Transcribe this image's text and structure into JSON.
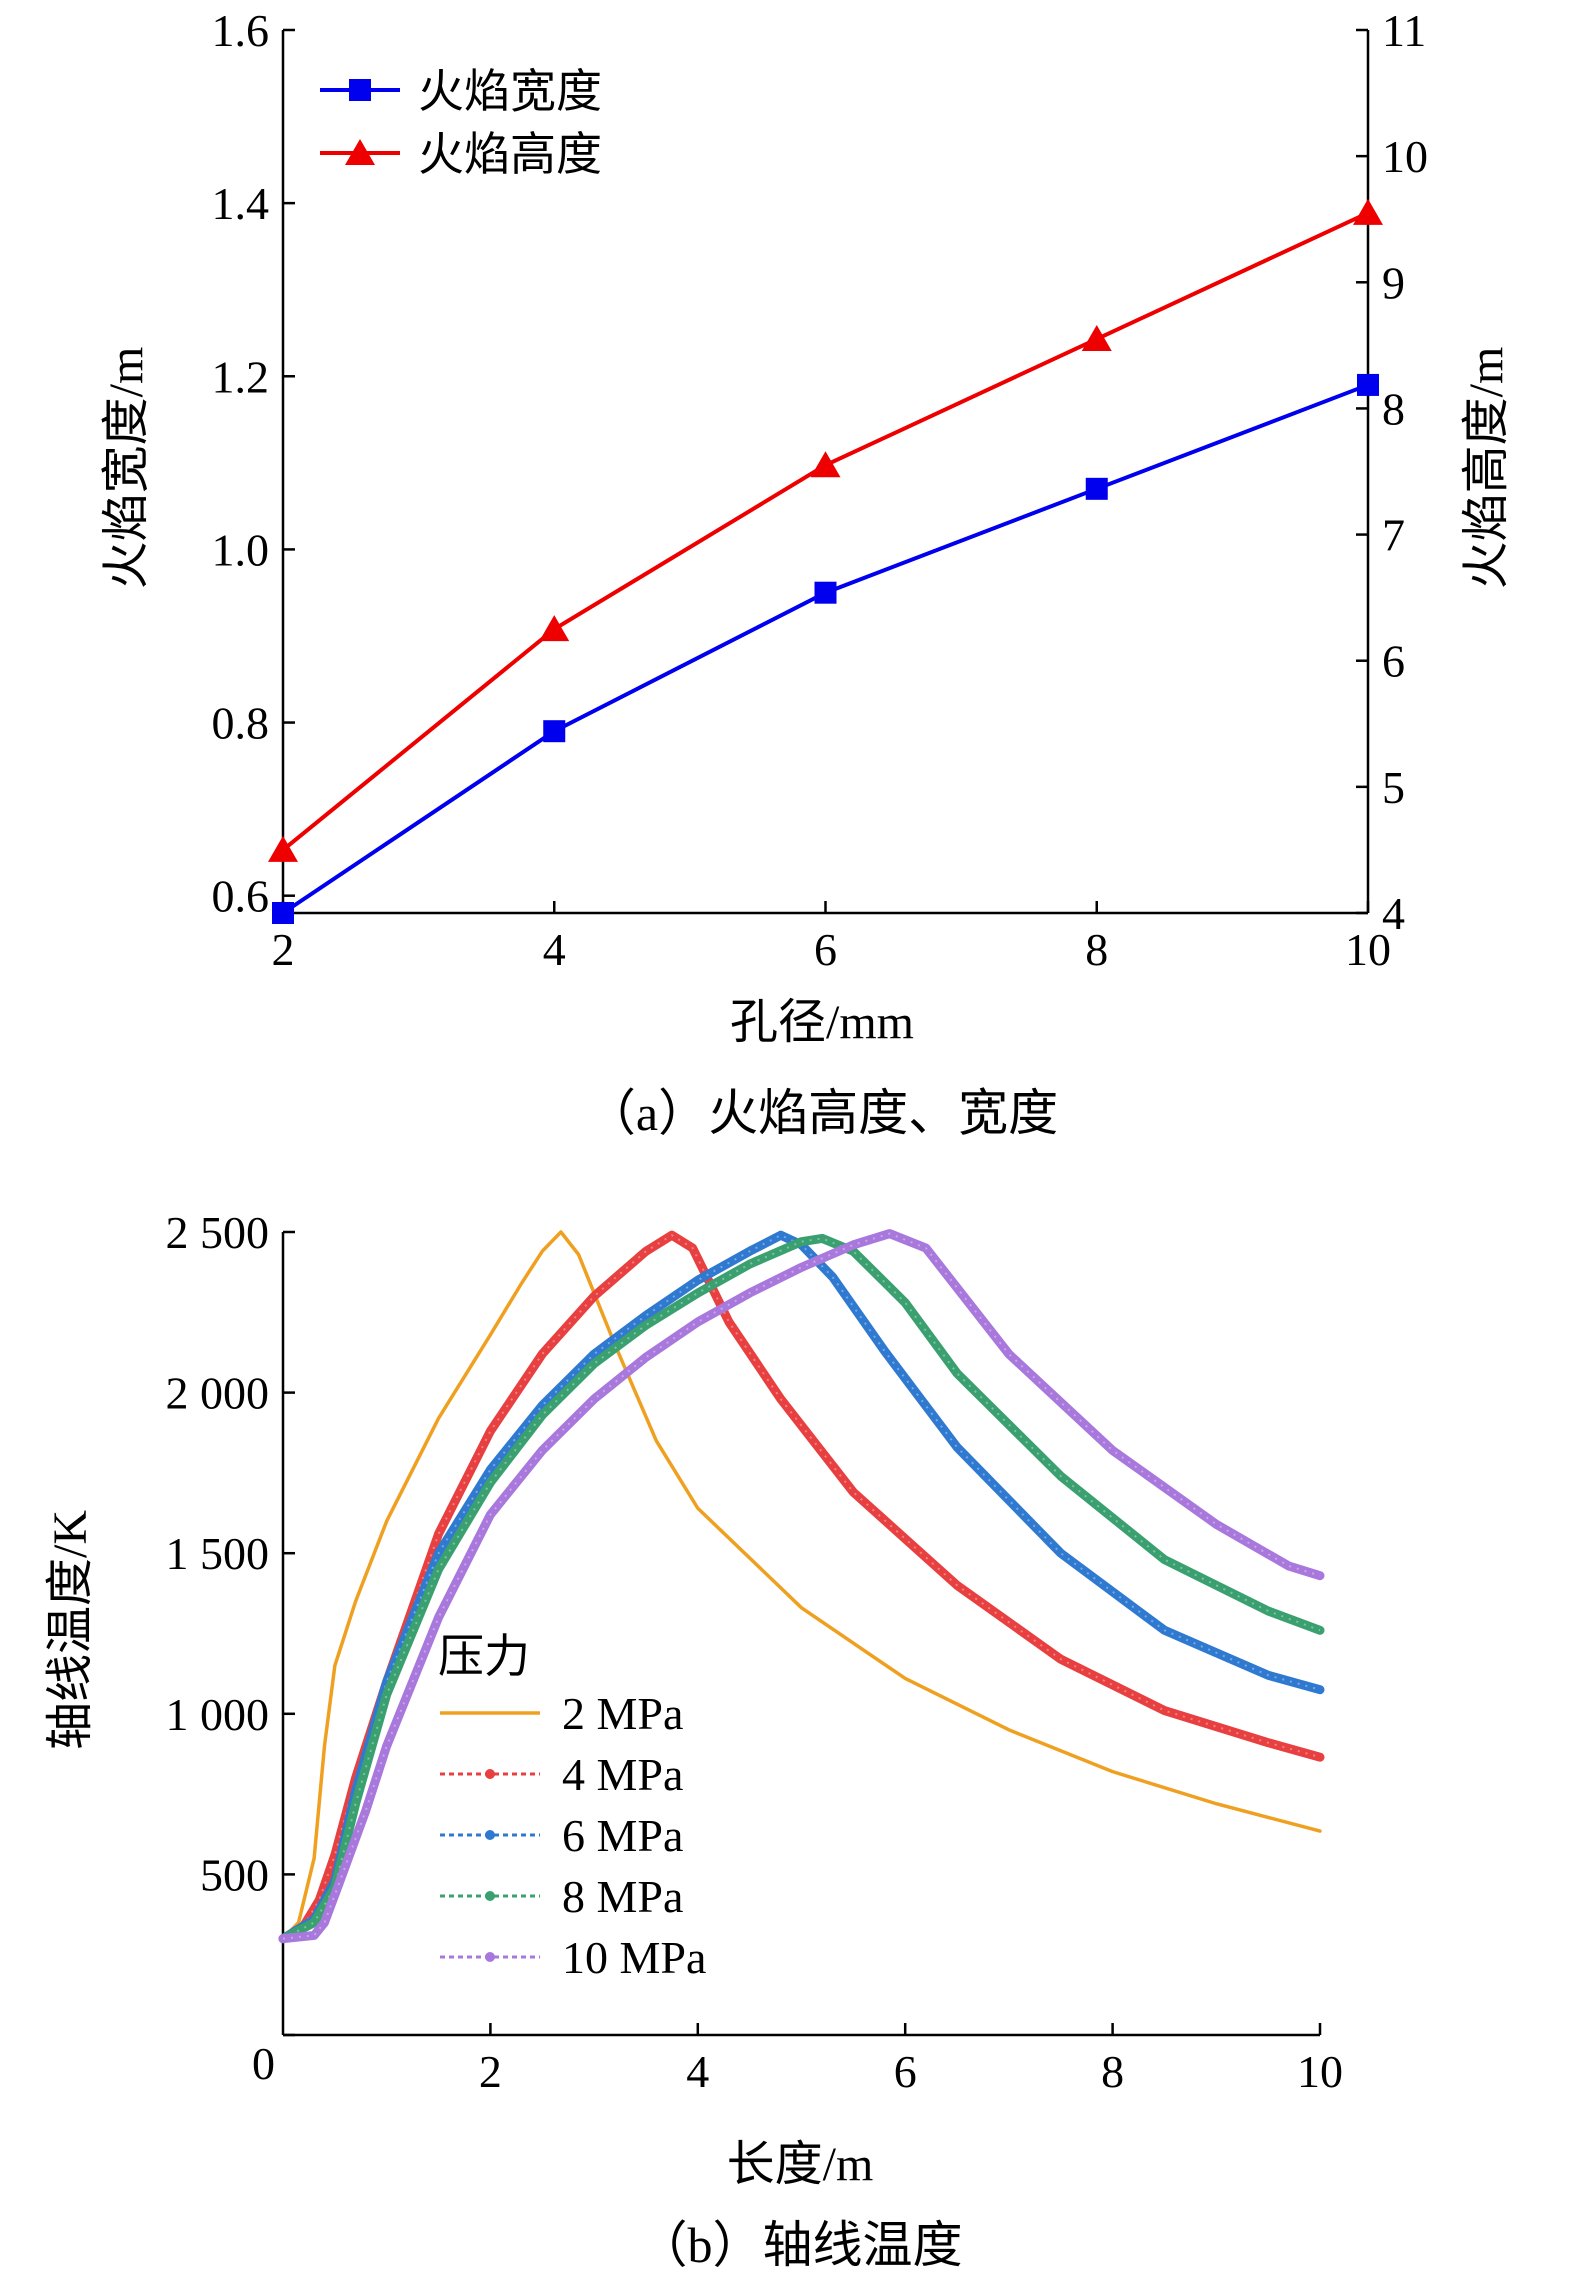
{
  "chart_data": [
    {
      "type": "line",
      "caption": "（a）火焰高度、宽度",
      "xlabel": "孔径/mm",
      "ylabel_left": "火焰宽度/m",
      "ylabel_right": "火焰高度/m",
      "xlim": [
        2,
        10
      ],
      "ylim_left": [
        0.58,
        1.6
      ],
      "ylim_right": [
        4,
        11
      ],
      "xticks": [
        "2",
        "4",
        "6",
        "8",
        "10"
      ],
      "yticks_left": [
        "0.6",
        "0.8",
        "1.0",
        "1.2",
        "1.4",
        "1.6"
      ],
      "yticks_right": [
        "4",
        "5",
        "6",
        "7",
        "8",
        "9",
        "10",
        "11"
      ],
      "x": [
        2,
        4,
        6,
        8,
        10
      ],
      "series": [
        {
          "name": "火焰宽度",
          "axis": "left",
          "color": "#0000ee",
          "marker": "square",
          "values": [
            0.58,
            0.79,
            0.95,
            1.07,
            1.19
          ]
        },
        {
          "name": "火焰高度",
          "axis": "right",
          "color": "#ee0000",
          "marker": "triangle",
          "values": [
            4.5,
            6.25,
            7.55,
            8.55,
            9.55
          ]
        }
      ],
      "legend": "top-left"
    },
    {
      "type": "line",
      "caption": "（b）轴线温度",
      "xlabel": "长度/m",
      "ylabel": "轴线温度/K",
      "xlim": [
        0,
        10
      ],
      "ylim": [
        0,
        2500
      ],
      "xticks": [
        "2",
        "4",
        "6",
        "8",
        "10"
      ],
      "yticks": [
        "0",
        "500",
        "1 000",
        "1 500",
        "2 000",
        "2 500"
      ],
      "legend_title": "压力",
      "legend": "center-left",
      "series": [
        {
          "name": "2 MPa",
          "color": "#f0a020",
          "style": "solid",
          "x": [
            0,
            0.15,
            0.3,
            0.4,
            0.5,
            0.7,
            1.0,
            1.5,
            2.0,
            2.3,
            2.5,
            2.68,
            2.85,
            3.2,
            3.6,
            4.0,
            5.0,
            6.0,
            7.0,
            8.0,
            9.0,
            10.0
          ],
          "y": [
            300,
            350,
            550,
            900,
            1150,
            1350,
            1600,
            1920,
            2180,
            2340,
            2440,
            2500,
            2430,
            2150,
            1850,
            1640,
            1330,
            1110,
            950,
            820,
            720,
            635
          ]
        },
        {
          "name": "4 MPa",
          "color": "#e84040",
          "style": "dotted",
          "x": [
            0,
            0.2,
            0.35,
            0.5,
            0.7,
            1.0,
            1.5,
            2.0,
            2.5,
            3.0,
            3.5,
            3.75,
            3.95,
            4.3,
            4.8,
            5.5,
            6.5,
            7.5,
            8.5,
            9.5,
            10.0
          ],
          "y": [
            300,
            340,
            420,
            560,
            800,
            1100,
            1560,
            1880,
            2120,
            2300,
            2440,
            2490,
            2450,
            2220,
            1980,
            1690,
            1400,
            1170,
            1010,
            910,
            865
          ]
        },
        {
          "name": "6 MPa",
          "color": "#2f7ad0",
          "style": "dotted",
          "x": [
            0,
            0.3,
            0.5,
            0.7,
            1.0,
            1.5,
            2.0,
            2.5,
            3.0,
            3.5,
            4.0,
            4.5,
            4.8,
            5.0,
            5.3,
            5.8,
            6.5,
            7.5,
            8.5,
            9.5,
            10.0
          ],
          "y": [
            300,
            360,
            480,
            760,
            1100,
            1500,
            1760,
            1960,
            2120,
            2240,
            2350,
            2440,
            2490,
            2460,
            2360,
            2130,
            1830,
            1500,
            1260,
            1120,
            1075
          ]
        },
        {
          "name": "8 MPa",
          "color": "#3aa070",
          "style": "dotted",
          "x": [
            0,
            0.3,
            0.5,
            0.7,
            1.0,
            1.5,
            2.0,
            2.5,
            3.0,
            3.5,
            4.0,
            4.5,
            5.0,
            5.2,
            5.5,
            6.0,
            6.5,
            7.5,
            8.5,
            9.5,
            10.0
          ],
          "y": [
            300,
            350,
            460,
            720,
            1060,
            1450,
            1720,
            1930,
            2090,
            2210,
            2310,
            2400,
            2470,
            2480,
            2440,
            2280,
            2060,
            1740,
            1480,
            1320,
            1260
          ]
        },
        {
          "name": "10 MPa",
          "color": "#a878dc",
          "style": "dotted",
          "x": [
            0,
            0.3,
            0.4,
            0.55,
            0.8,
            1.0,
            1.5,
            2.0,
            2.5,
            3.0,
            3.5,
            4.0,
            4.5,
            5.0,
            5.5,
            5.85,
            6.2,
            7.0,
            8.0,
            9.0,
            9.7,
            10.0
          ],
          "y": [
            300,
            310,
            350,
            480,
            700,
            900,
            1300,
            1620,
            1820,
            1980,
            2110,
            2220,
            2310,
            2390,
            2460,
            2495,
            2450,
            2120,
            1820,
            1590,
            1460,
            1430
          ]
        }
      ]
    }
  ]
}
